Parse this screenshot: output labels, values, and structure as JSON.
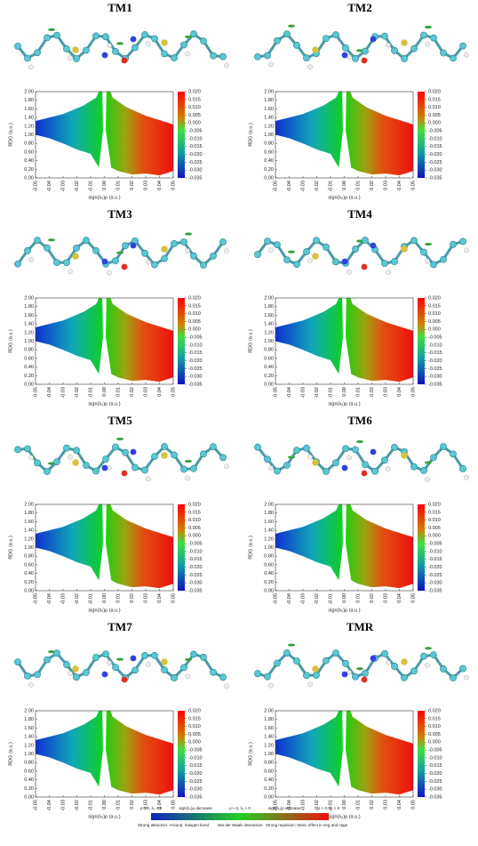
{
  "axes": {
    "x_label": "sign(λ₂)ρ (a.u.)",
    "y_label": "RDG (a.u.)",
    "xlim": [
      -0.05,
      0.05
    ],
    "xticks": [
      -0.05,
      -0.04,
      -0.03,
      -0.02,
      -0.01,
      {
        "value": 0,
        "label": "0.00"
      },
      0.01,
      0.02,
      0.03,
      0.04,
      0.05
    ],
    "ylim": [
      0,
      2
    ],
    "yticks": [
      {
        "value": 0,
        "label": "0.00"
      },
      {
        "value": 0.2,
        "label": "0.20"
      },
      {
        "value": 0.4,
        "label": "0.40"
      },
      {
        "value": 0.6,
        "label": "0.60"
      },
      {
        "value": 0.8,
        "label": "0.80"
      },
      {
        "value": 1,
        "label": "1.00"
      },
      {
        "value": 1.2,
        "label": "1.20"
      },
      {
        "value": 1.4,
        "label": "1.40"
      },
      {
        "value": 1.6,
        "label": "1.60"
      },
      {
        "value": 1.8,
        "label": "1.80"
      },
      {
        "value": 2,
        "label": "2.00"
      }
    ],
    "colorbar_lim": [
      -0.035,
      0.02
    ],
    "colorbar_ticks": [
      {
        "value": 0.02,
        "label": "0.020"
      },
      0.015,
      {
        "value": 0.01,
        "label": "0.010"
      },
      0.005,
      {
        "value": 0,
        "label": "0.000"
      },
      -0.005,
      {
        "value": -0.01,
        "label": "-0.010"
      },
      -0.015,
      {
        "value": -0.02,
        "label": "-0.020"
      },
      -0.025,
      {
        "value": -0.03,
        "label": "-0.030"
      },
      -0.035
    ]
  },
  "panels": [
    {
      "title": "TM1"
    },
    {
      "title": "TM2"
    },
    {
      "title": "TM3"
    },
    {
      "title": "TM4"
    },
    {
      "title": "TM5"
    },
    {
      "title": "TM6"
    },
    {
      "title": "TM7"
    },
    {
      "title": "TMR"
    }
  ],
  "legend": {
    "top": [
      "ρ > 0, λ₂ < 0",
      "sign(λ₂)ρ decrease",
      "ρ ≈ 0, λ₂ ≈ 0",
      "sign(λ₂)ρ increase",
      "ρ > 0, λ₂ > 0"
    ],
    "bottom": [
      "Strong attraction: H-bond, halogen bond",
      "Van der Waals interaction",
      "Strong repulsion: Steric effect in ring and cage"
    ]
  }
}
